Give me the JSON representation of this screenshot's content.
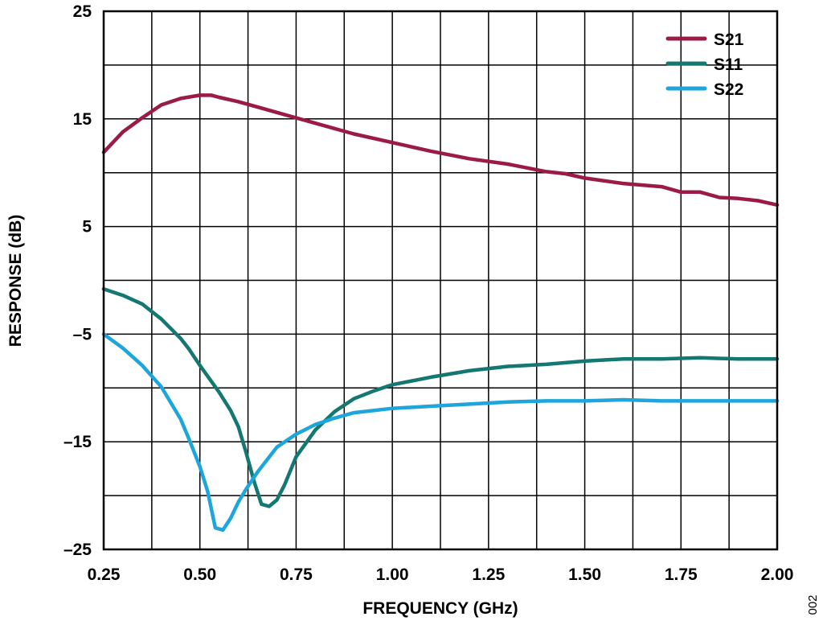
{
  "chart_data": {
    "type": "line",
    "title": "",
    "xlabel": "FREQUENCY (GHz)",
    "ylabel": "RESPONSE (dB)",
    "xlim": [
      0.25,
      2.0
    ],
    "ylim": [
      -25,
      25
    ],
    "x_ticks": [
      0.25,
      0.5,
      0.75,
      1.0,
      1.25,
      1.5,
      1.75,
      2.0
    ],
    "x_tick_labels": [
      "0.25",
      "0.50",
      "0.75",
      "1.00",
      "1.25",
      "1.50",
      "1.75",
      "2.00"
    ],
    "y_ticks": [
      25,
      15,
      5,
      -5,
      -15,
      -25
    ],
    "y_tick_labels": [
      "25",
      "15",
      "5",
      "–5",
      "–15",
      "–25"
    ],
    "x_minor_grid": [
      0.375,
      0.625,
      0.875,
      1.125,
      1.375,
      1.625,
      1.875
    ],
    "y_minor_grid": [
      20,
      10,
      0,
      -10,
      -20
    ],
    "grid": true,
    "legend": "top-right",
    "series": [
      {
        "name": "S21",
        "color": "#9b1b45",
        "x": [
          0.25,
          0.3,
          0.35,
          0.4,
          0.45,
          0.5,
          0.53,
          0.55,
          0.6,
          0.65,
          0.7,
          0.75,
          0.8,
          0.9,
          1.0,
          1.1,
          1.2,
          1.3,
          1.4,
          1.45,
          1.5,
          1.6,
          1.7,
          1.75,
          1.8,
          1.85,
          1.9,
          1.95,
          2.0
        ],
        "y": [
          11.9,
          13.8,
          15.1,
          16.3,
          16.9,
          17.2,
          17.2,
          17.0,
          16.6,
          16.1,
          15.6,
          15.1,
          14.6,
          13.6,
          12.8,
          12.0,
          11.3,
          10.8,
          10.1,
          9.9,
          9.5,
          9.0,
          8.7,
          8.2,
          8.2,
          7.7,
          7.6,
          7.4,
          7.0
        ]
      },
      {
        "name": "S11",
        "color": "#147872",
        "x": [
          0.25,
          0.3,
          0.35,
          0.4,
          0.45,
          0.47,
          0.5,
          0.55,
          0.58,
          0.6,
          0.62,
          0.64,
          0.66,
          0.68,
          0.7,
          0.72,
          0.75,
          0.8,
          0.85,
          0.9,
          0.95,
          1.0,
          1.1,
          1.2,
          1.3,
          1.4,
          1.5,
          1.6,
          1.7,
          1.8,
          1.9,
          2.0
        ],
        "y": [
          -0.8,
          -1.4,
          -2.2,
          -3.6,
          -5.4,
          -6.3,
          -7.9,
          -10.4,
          -12.1,
          -13.6,
          -16.0,
          -18.6,
          -20.8,
          -21.0,
          -20.4,
          -19.0,
          -16.4,
          -13.9,
          -12.2,
          -11.0,
          -10.3,
          -9.7,
          -9.0,
          -8.4,
          -8.0,
          -7.8,
          -7.5,
          -7.3,
          -7.3,
          -7.2,
          -7.3,
          -7.3
        ]
      },
      {
        "name": "S22",
        "color": "#1ea6dc",
        "x": [
          0.25,
          0.3,
          0.35,
          0.4,
          0.45,
          0.47,
          0.5,
          0.52,
          0.54,
          0.56,
          0.58,
          0.6,
          0.62,
          0.65,
          0.7,
          0.75,
          0.8,
          0.85,
          0.9,
          1.0,
          1.1,
          1.2,
          1.3,
          1.4,
          1.5,
          1.6,
          1.7,
          1.8,
          1.9,
          2.0
        ],
        "y": [
          -5.0,
          -6.3,
          -7.9,
          -9.9,
          -12.9,
          -14.6,
          -17.3,
          -19.6,
          -23.0,
          -23.2,
          -22.1,
          -20.6,
          -19.4,
          -17.8,
          -15.5,
          -14.3,
          -13.4,
          -12.8,
          -12.3,
          -11.9,
          -11.7,
          -11.5,
          -11.3,
          -11.2,
          -11.2,
          -11.1,
          -11.2,
          -11.2,
          -11.2,
          -11.2
        ]
      }
    ]
  },
  "figure_id": "002"
}
